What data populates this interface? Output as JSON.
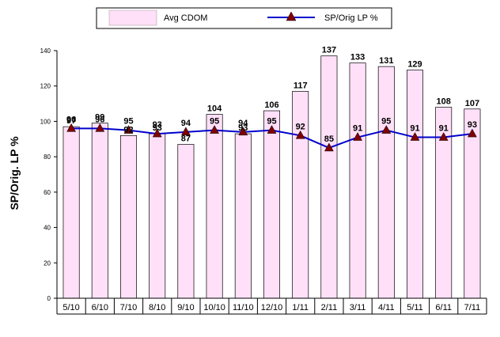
{
  "chart_data": {
    "type": "bar",
    "title": "",
    "xlabel": "",
    "ylabel": "SP/Orig. LP %",
    "ylim": [
      0,
      140
    ],
    "yticks": [
      0,
      20,
      40,
      60,
      80,
      100,
      120,
      140
    ],
    "grid": false,
    "legend_position": "top",
    "categories": [
      "5/10",
      "6/10",
      "7/10",
      "8/10",
      "9/10",
      "10/10",
      "11/10",
      "12/10",
      "1/11",
      "2/11",
      "3/11",
      "4/11",
      "5/11",
      "6/11",
      "7/11"
    ],
    "series": [
      {
        "name": "Avg CDOM",
        "kind": "bar",
        "color": "#ffe0f8",
        "stroke": "#000000",
        "values": [
          97,
          99,
          92,
          93,
          87,
          104,
          93,
          106,
          117,
          137,
          133,
          131,
          129,
          108,
          107
        ],
        "labels": [
          "97",
          "99",
          "92",
          "93",
          "87",
          "104",
          "93",
          "106",
          "117",
          "137",
          "133",
          "131",
          "129",
          "108",
          "107"
        ]
      },
      {
        "name": "SP/Orig LP %",
        "kind": "line",
        "color": "#0000cc",
        "marker": "triangle",
        "marker_color": "#800000",
        "values": [
          96,
          96,
          95,
          93,
          94,
          95,
          94,
          95,
          92,
          85,
          91,
          95,
          91,
          91,
          93
        ],
        "labels": [
          "96",
          "96",
          "95",
          "93",
          "94",
          "95",
          "94",
          "95",
          "92",
          "85",
          "91",
          "95",
          "91",
          "91",
          "93"
        ]
      }
    ]
  }
}
